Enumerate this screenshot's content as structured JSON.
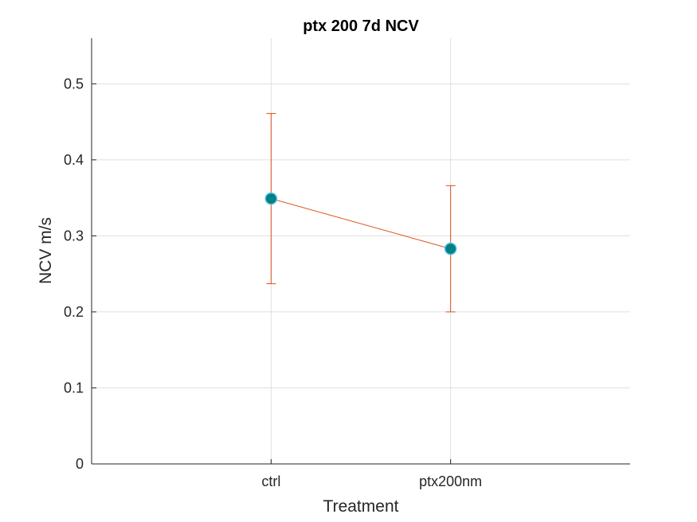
{
  "chart_data": {
    "type": "line",
    "title": "ptx 200 7d NCV",
    "xlabel": "Treatment",
    "ylabel": "NCV m/s",
    "categories": [
      "ctrl",
      "ptx200nm"
    ],
    "xlim": [
      0.5,
      3.5
    ],
    "ylim": [
      0,
      0.56
    ],
    "yticks": [
      0,
      0.1,
      0.2,
      0.3,
      0.4,
      0.5
    ],
    "ytick_labels": [
      "0",
      "0.1",
      "0.2",
      "0.3",
      "0.4",
      "0.5"
    ],
    "grid": true,
    "series": [
      {
        "values": [
          0.349,
          0.283
        ],
        "error_low": [
          0.237,
          0.2
        ],
        "error_high": [
          0.461,
          0.366
        ],
        "line_color": "#D95319",
        "marker_face_color": "#008080",
        "marker_edge_color": "#4DBEEE"
      }
    ]
  }
}
